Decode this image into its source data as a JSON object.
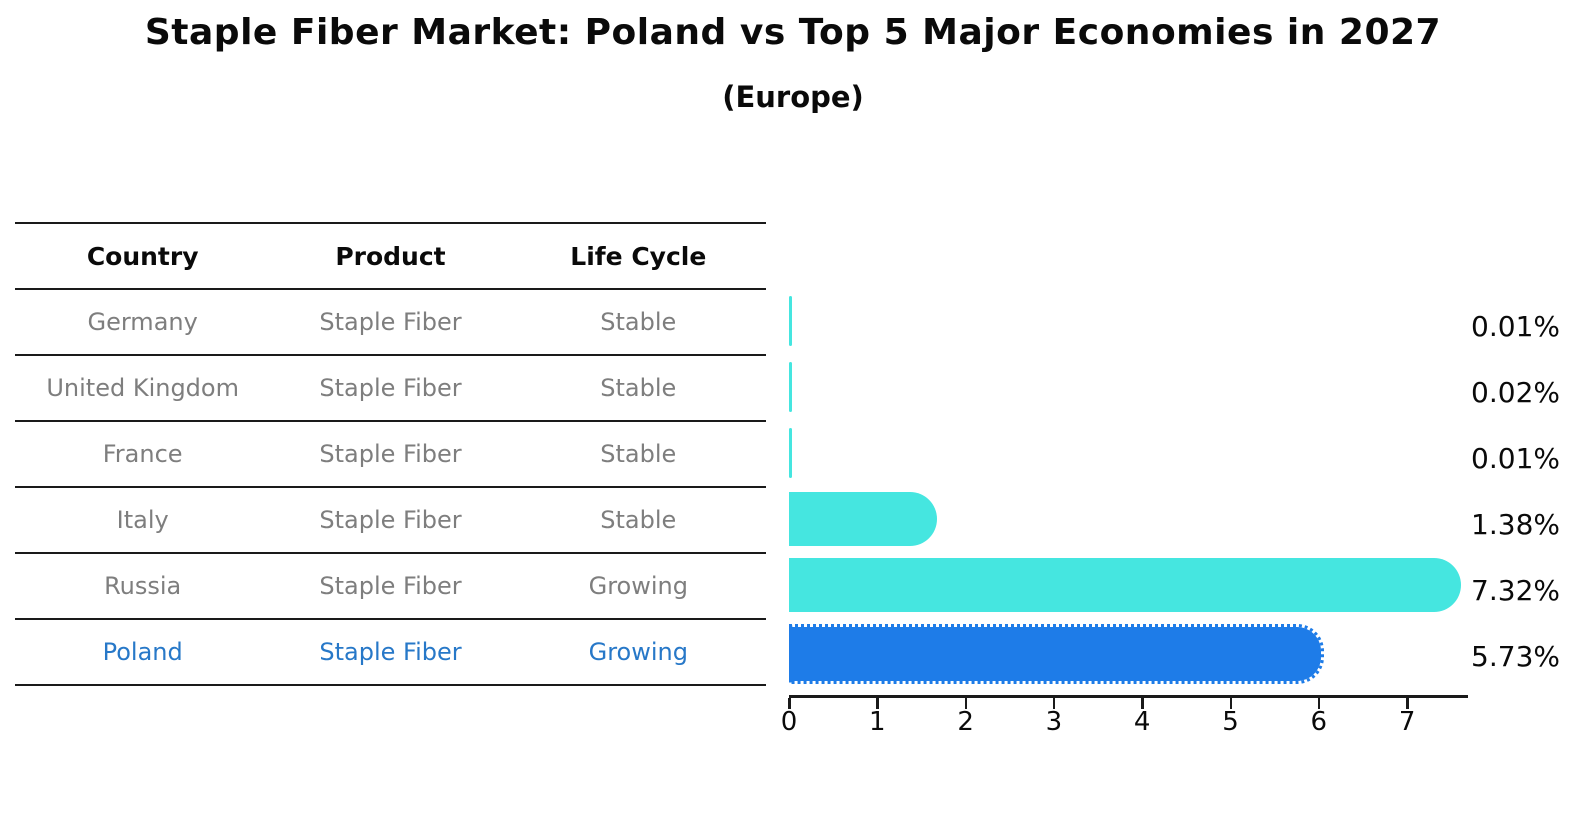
{
  "title": "Staple Fiber Market: Poland vs Top 5 Major Economies in 2027",
  "subtitle": "(Europe)",
  "table": {
    "headers": [
      "Country",
      "Product",
      "Life Cycle"
    ],
    "rows": [
      {
        "country": "Germany",
        "product": "Staple Fiber",
        "life_cycle": "Stable",
        "share_label": "0.01%",
        "highlight": false
      },
      {
        "country": "United Kingdom",
        "product": "Staple Fiber",
        "life_cycle": "Stable",
        "share_label": "0.02%",
        "highlight": false
      },
      {
        "country": "France",
        "product": "Staple Fiber",
        "life_cycle": "Stable",
        "share_label": "0.01%",
        "highlight": false
      },
      {
        "country": "Italy",
        "product": "Staple Fiber",
        "life_cycle": "Stable",
        "share_label": "1.38%",
        "highlight": false
      },
      {
        "country": "Russia",
        "product": "Staple Fiber",
        "life_cycle": "Growing",
        "share_label": "7.32%",
        "highlight": false
      },
      {
        "country": "Poland",
        "product": "Staple Fiber",
        "life_cycle": "Growing",
        "share_label": "5.73%",
        "highlight": true
      }
    ]
  },
  "chart_data": {
    "type": "bar",
    "orientation": "horizontal",
    "title": "Staple Fiber Market: Poland vs Top 5 Major Economies in 2027",
    "subtitle": "(Europe)",
    "categories": [
      "Germany",
      "United Kingdom",
      "France",
      "Italy",
      "Russia",
      "Poland"
    ],
    "values": [
      0.01,
      0.02,
      0.01,
      1.38,
      7.32,
      5.73
    ],
    "value_labels": [
      "0.01%",
      "0.02%",
      "0.01%",
      "1.38%",
      "7.32%",
      "5.73%"
    ],
    "unit": "%",
    "xlabel": "",
    "ylabel": "",
    "xlim": [
      0,
      7.69
    ],
    "xticks": [
      0,
      1,
      2,
      3,
      4,
      5,
      6,
      7
    ],
    "grid": false,
    "legend": false,
    "highlight_category": "Poland"
  },
  "colors": {
    "bar_default": "#45e6e0",
    "bar_highlight": "#1e7ce8",
    "highlight_text": "#2778c8",
    "row_text": "#7e7e7e",
    "header_text": "#0a0a0a",
    "axis": "#1a1a1a"
  }
}
